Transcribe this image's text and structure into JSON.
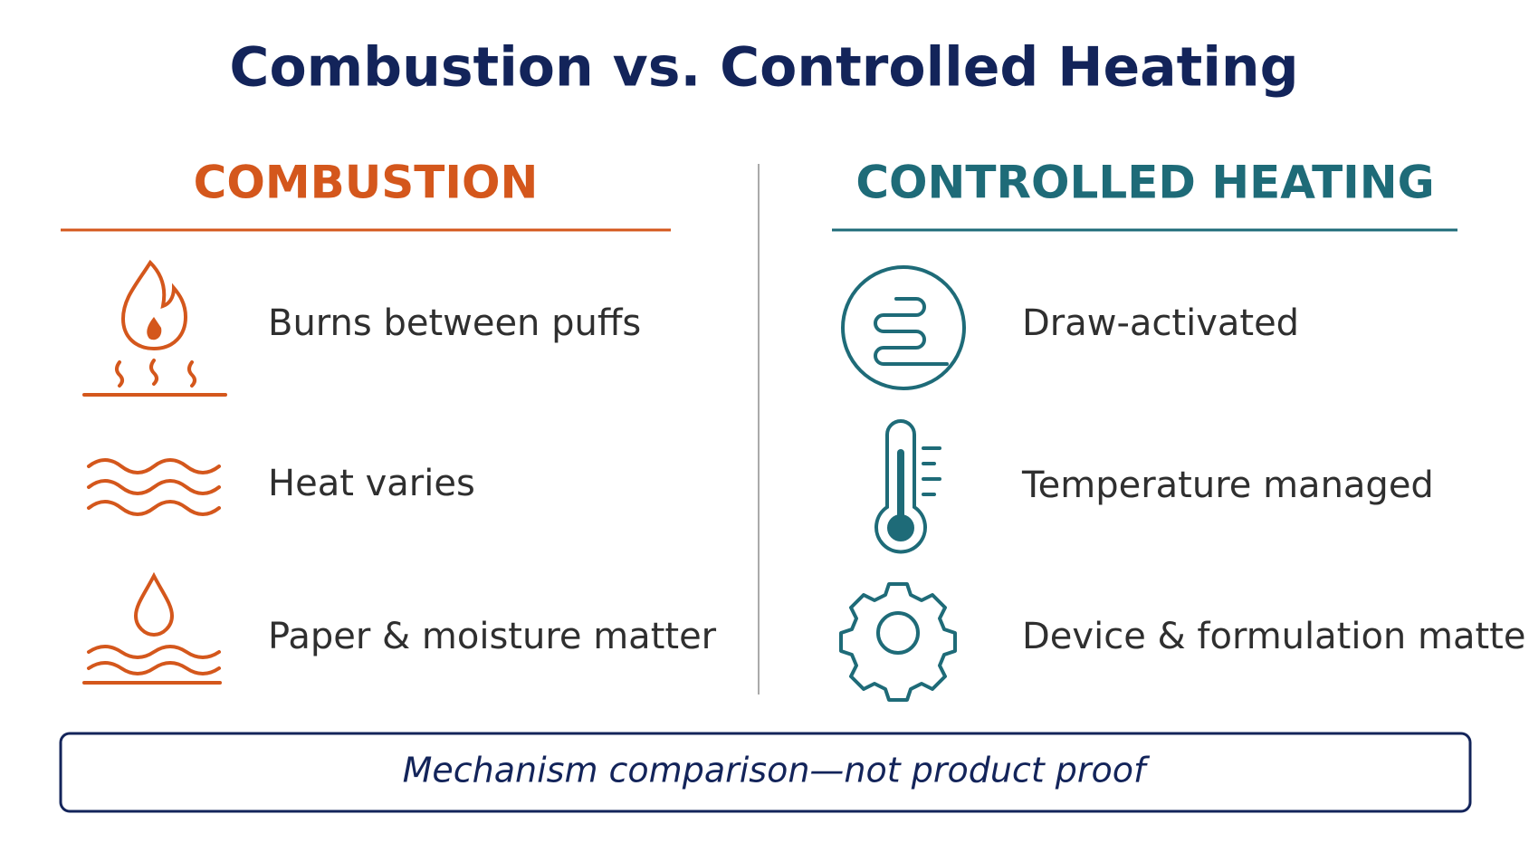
{
  "header": {
    "title": "Combustion vs. Controlled Heating"
  },
  "left": {
    "heading": "COMBUSTION",
    "items": [
      "Burns between puffs",
      "Heat varies",
      "Paper & moisture matter"
    ]
  },
  "right": {
    "heading": "CONTROLLED HEATING",
    "items": [
      "Draw-activated",
      "Temperature managed",
      "Device & formulation matter"
    ]
  },
  "footer": {
    "note": "Mechanism comparison—not product proof"
  }
}
